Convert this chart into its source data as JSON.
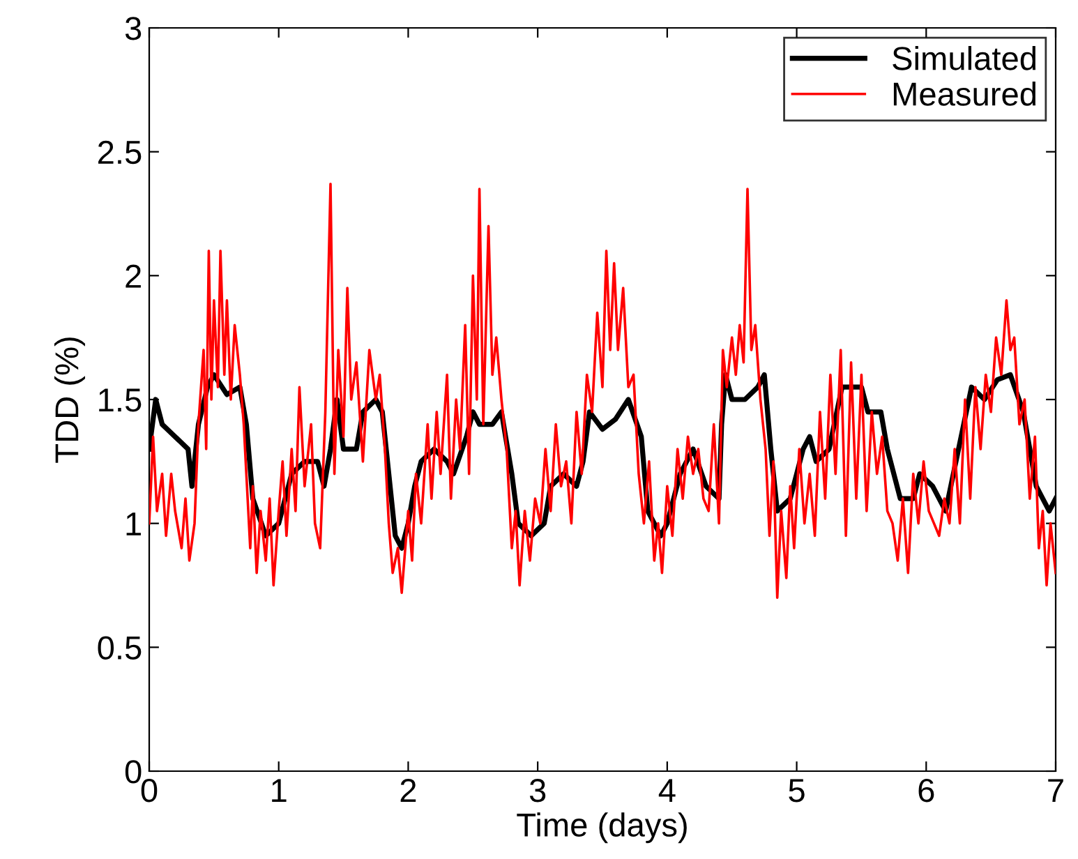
{
  "chart_data": {
    "type": "line",
    "xlabel": "Time (days)",
    "ylabel": "TDD (%)",
    "xlim": [
      0,
      7
    ],
    "ylim": [
      0,
      3
    ],
    "xticks": [
      0,
      1,
      2,
      3,
      4,
      5,
      6,
      7
    ],
    "yticks": [
      0,
      0.5,
      1,
      1.5,
      2,
      2.5,
      3
    ],
    "grid": false,
    "legend": "top right",
    "marker": "none",
    "line_style": "solid",
    "series": [
      {
        "name": "Simulated",
        "color": "#000000",
        "x": [
          0,
          0.05,
          0.1,
          0.2,
          0.3,
          0.33,
          0.38,
          0.45,
          0.5,
          0.6,
          0.7,
          0.75,
          0.8,
          0.9,
          1.0,
          1.05,
          1.1,
          1.2,
          1.3,
          1.35,
          1.4,
          1.45,
          1.5,
          1.6,
          1.65,
          1.75,
          1.8,
          1.85,
          1.9,
          1.95,
          2.0,
          2.05,
          2.1,
          2.2,
          2.3,
          2.35,
          2.45,
          2.5,
          2.55,
          2.65,
          2.72,
          2.8,
          2.85,
          2.95,
          3.05,
          3.1,
          3.2,
          3.3,
          3.35,
          3.4,
          3.5,
          3.6,
          3.7,
          3.8,
          3.85,
          3.95,
          4.0,
          4.1,
          4.2,
          4.3,
          4.4,
          4.42,
          4.45,
          4.5,
          4.6,
          4.7,
          4.75,
          4.8,
          4.85,
          4.95,
          5.05,
          5.1,
          5.15,
          5.25,
          5.35,
          5.5,
          5.55,
          5.65,
          5.7,
          5.8,
          5.9,
          5.95,
          6.05,
          6.15,
          6.25,
          6.35,
          6.45,
          6.55,
          6.65,
          6.75,
          6.85,
          6.95,
          7.0
        ],
        "values": [
          1.3,
          1.5,
          1.4,
          1.35,
          1.3,
          1.15,
          1.4,
          1.55,
          1.6,
          1.52,
          1.55,
          1.4,
          1.1,
          0.95,
          1.0,
          1.1,
          1.2,
          1.25,
          1.25,
          1.15,
          1.3,
          1.5,
          1.3,
          1.3,
          1.45,
          1.5,
          1.45,
          1.2,
          0.95,
          0.9,
          1.0,
          1.15,
          1.25,
          1.3,
          1.25,
          1.2,
          1.35,
          1.45,
          1.4,
          1.4,
          1.45,
          1.2,
          1.0,
          0.95,
          1.0,
          1.15,
          1.2,
          1.15,
          1.25,
          1.45,
          1.38,
          1.42,
          1.5,
          1.35,
          1.05,
          0.95,
          1.0,
          1.2,
          1.3,
          1.15,
          1.1,
          1.4,
          1.6,
          1.5,
          1.5,
          1.55,
          1.6,
          1.3,
          1.05,
          1.1,
          1.3,
          1.35,
          1.25,
          1.3,
          1.55,
          1.55,
          1.45,
          1.45,
          1.3,
          1.1,
          1.1,
          1.2,
          1.15,
          1.05,
          1.3,
          1.55,
          1.5,
          1.58,
          1.6,
          1.45,
          1.15,
          1.05,
          1.1
        ]
      },
      {
        "name": "Measured",
        "color": "#ff0000",
        "x": [
          0,
          0.03,
          0.06,
          0.1,
          0.13,
          0.17,
          0.2,
          0.25,
          0.28,
          0.31,
          0.35,
          0.38,
          0.42,
          0.44,
          0.46,
          0.48,
          0.5,
          0.53,
          0.55,
          0.58,
          0.6,
          0.63,
          0.66,
          0.7,
          0.73,
          0.75,
          0.78,
          0.8,
          0.83,
          0.86,
          0.9,
          0.93,
          0.96,
          1.0,
          1.03,
          1.06,
          1.1,
          1.13,
          1.16,
          1.2,
          1.25,
          1.28,
          1.32,
          1.36,
          1.4,
          1.43,
          1.46,
          1.5,
          1.53,
          1.56,
          1.6,
          1.65,
          1.7,
          1.75,
          1.78,
          1.82,
          1.85,
          1.88,
          1.92,
          1.95,
          2.0,
          2.03,
          2.06,
          2.1,
          2.15,
          2.18,
          2.22,
          2.25,
          2.3,
          2.33,
          2.37,
          2.4,
          2.44,
          2.47,
          2.5,
          2.53,
          2.55,
          2.58,
          2.62,
          2.65,
          2.68,
          2.72,
          2.76,
          2.8,
          2.83,
          2.86,
          2.9,
          2.94,
          2.98,
          3.02,
          3.06,
          3.1,
          3.14,
          3.18,
          3.22,
          3.26,
          3.3,
          3.34,
          3.38,
          3.42,
          3.46,
          3.5,
          3.53,
          3.56,
          3.59,
          3.62,
          3.66,
          3.7,
          3.74,
          3.78,
          3.82,
          3.86,
          3.9,
          3.93,
          3.96,
          4.0,
          4.04,
          4.08,
          4.12,
          4.16,
          4.2,
          4.24,
          4.28,
          4.32,
          4.36,
          4.4,
          4.43,
          4.46,
          4.5,
          4.53,
          4.56,
          4.59,
          4.62,
          4.65,
          4.68,
          4.72,
          4.76,
          4.79,
          4.82,
          4.85,
          4.88,
          4.92,
          4.95,
          4.98,
          5.02,
          5.06,
          5.1,
          5.14,
          5.18,
          5.22,
          5.26,
          5.3,
          5.34,
          5.38,
          5.42,
          5.46,
          5.5,
          5.54,
          5.58,
          5.62,
          5.66,
          5.7,
          5.74,
          5.78,
          5.82,
          5.86,
          5.9,
          5.94,
          5.98,
          6.02,
          6.06,
          6.1,
          6.14,
          6.18,
          6.22,
          6.26,
          6.3,
          6.34,
          6.38,
          6.42,
          6.46,
          6.5,
          6.54,
          6.58,
          6.62,
          6.65,
          6.68,
          6.72,
          6.76,
          6.8,
          6.84,
          6.87,
          6.9,
          6.93,
          6.96,
          7.0
        ],
        "values": [
          1.0,
          1.35,
          1.05,
          1.2,
          0.95,
          1.2,
          1.05,
          0.9,
          1.1,
          0.85,
          1.0,
          1.4,
          1.7,
          1.3,
          2.1,
          1.5,
          1.9,
          1.55,
          2.1,
          1.6,
          1.9,
          1.5,
          1.8,
          1.6,
          1.4,
          1.2,
          0.9,
          1.15,
          0.8,
          1.05,
          0.85,
          1.1,
          0.75,
          1.05,
          1.25,
          0.95,
          1.3,
          1.05,
          1.55,
          1.15,
          1.4,
          1.0,
          0.9,
          1.45,
          2.37,
          1.2,
          1.7,
          1.35,
          1.95,
          1.5,
          1.65,
          1.25,
          1.7,
          1.5,
          1.6,
          1.3,
          1.0,
          0.8,
          0.9,
          0.72,
          1.05,
          0.85,
          1.2,
          1.0,
          1.4,
          1.1,
          1.45,
          1.2,
          1.6,
          1.1,
          1.5,
          1.3,
          1.8,
          1.2,
          2.0,
          1.5,
          2.35,
          1.4,
          2.2,
          1.6,
          1.75,
          1.5,
          1.3,
          0.9,
          1.05,
          0.75,
          1.05,
          0.85,
          1.1,
          1.0,
          1.3,
          1.05,
          1.4,
          1.15,
          1.25,
          1.0,
          1.45,
          1.2,
          1.6,
          1.45,
          1.85,
          1.55,
          2.1,
          1.7,
          2.05,
          1.7,
          1.95,
          1.55,
          1.6,
          1.2,
          1.0,
          1.25,
          0.85,
          1.0,
          0.8,
          1.15,
          0.95,
          1.3,
          1.1,
          1.35,
          1.2,
          1.3,
          1.1,
          1.05,
          1.4,
          1.0,
          1.7,
          1.55,
          1.75,
          1.6,
          1.8,
          1.65,
          2.35,
          1.7,
          1.8,
          1.5,
          1.3,
          0.95,
          1.25,
          0.7,
          1.05,
          0.78,
          1.15,
          0.9,
          1.3,
          1.0,
          1.2,
          0.95,
          1.45,
          1.1,
          1.6,
          1.2,
          1.7,
          0.95,
          1.65,
          1.1,
          1.6,
          1.05,
          1.45,
          1.2,
          1.35,
          1.05,
          1.0,
          0.85,
          1.1,
          0.8,
          1.2,
          1.0,
          1.25,
          1.05,
          1.0,
          0.95,
          1.1,
          1.0,
          1.3,
          1.0,
          1.5,
          1.1,
          1.55,
          1.3,
          1.6,
          1.45,
          1.75,
          1.6,
          1.9,
          1.7,
          1.75,
          1.4,
          1.5,
          1.1,
          1.35,
          0.9,
          1.05,
          0.75,
          1.0,
          0.8
        ]
      }
    ]
  }
}
